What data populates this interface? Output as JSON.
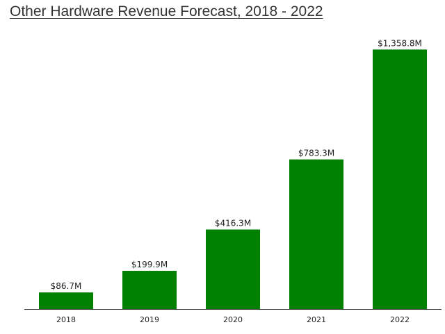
{
  "chart_data": {
    "type": "bar",
    "title": "Other Hardware Revenue Forecast, 2018 - 2022",
    "categories": [
      "2018",
      "2019",
      "2020",
      "2021",
      "2022"
    ],
    "values": [
      86.7,
      199.9,
      416.3,
      783.3,
      1358.8
    ],
    "value_labels": [
      "$86.7M",
      "$199.9M",
      "$416.3M",
      "$783.3M",
      "$1,358.8M"
    ],
    "xlabel": "",
    "ylabel": "",
    "ylim": [
      0,
      1600
    ],
    "grid": false,
    "bar_color": "#008000"
  }
}
